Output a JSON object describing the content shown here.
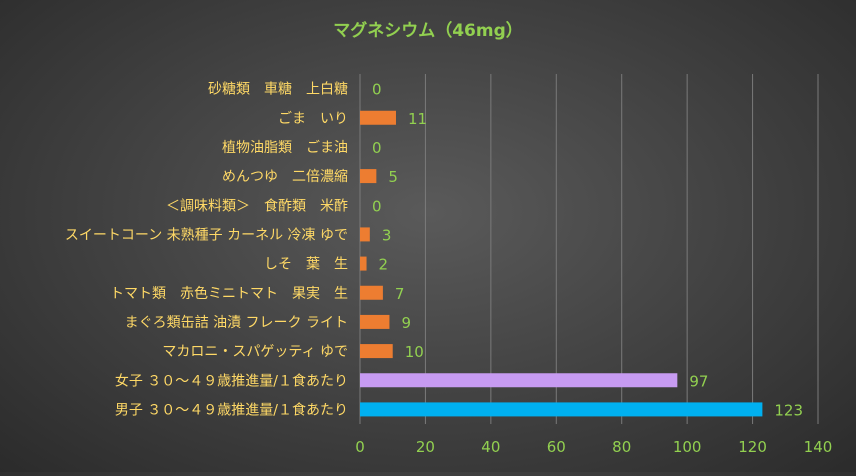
{
  "chart_data": {
    "type": "bar",
    "orientation": "horizontal",
    "title": "マグネシウム（46mg）",
    "categories": [
      "砂糖類　車糖　上白糖",
      "ごま　いり",
      "植物油脂類　ごま油",
      "めんつゆ　二倍濃縮",
      "＜調味料類＞　食酢類　米酢",
      "スイートコーン 未熟種子 カーネル 冷凍 ゆで",
      "しそ　葉　生",
      "トマト類　赤色ミニトマト　果実　生",
      "まぐろ類缶詰 油漬 フレーク ライト",
      "マカロニ・スパゲッティ ゆで",
      "女子 ３０～４９歳推進量/１食あたり",
      "男子 ３０～４９歳推進量/１食あたり"
    ],
    "values": [
      0,
      11,
      0,
      5,
      0,
      3,
      2,
      7,
      9,
      10,
      97,
      123
    ],
    "bar_colors": [
      "#ED7D31",
      "#ED7D31",
      "#ED7D31",
      "#ED7D31",
      "#ED7D31",
      "#ED7D31",
      "#ED7D31",
      "#ED7D31",
      "#ED7D31",
      "#ED7D31",
      "#C79BF2",
      "#00B0F0"
    ],
    "x_ticks": [
      0,
      20,
      40,
      60,
      80,
      100,
      120,
      140
    ],
    "xlim": [
      0,
      140
    ],
    "grid": "vertical",
    "legend": "none",
    "colors": {
      "title": "#92D050",
      "category_label": "#FFD966",
      "value_label": "#92D050",
      "tick_label": "#92D050",
      "gridline": "#7a7a7a"
    }
  }
}
